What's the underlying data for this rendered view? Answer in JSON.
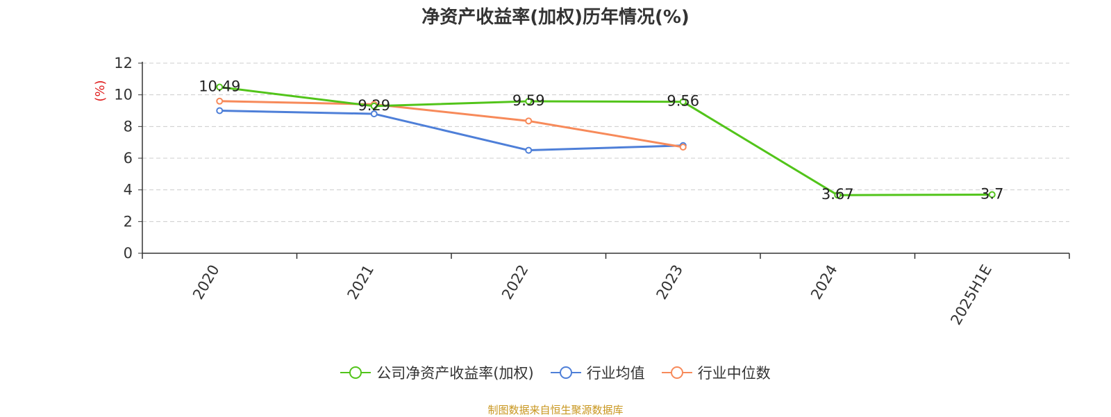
{
  "title": "净资产收益率(加权)历年情况(%)",
  "source": "制图数据来自恒生聚源数据库",
  "chart_data": {
    "type": "line",
    "categories": [
      "2020",
      "2021",
      "2022",
      "2023",
      "2024",
      "2025H1E"
    ],
    "ylabel": "(%)",
    "ylim": [
      0,
      12
    ],
    "yticks": [
      0,
      2,
      4,
      6,
      8,
      10,
      12
    ],
    "grid": true,
    "legend_position": "bottom",
    "series": [
      {
        "name": "公司净资产收益率(加权)",
        "color": "#52c41a",
        "values": [
          10.49,
          9.29,
          9.59,
          9.56,
          3.67,
          3.7
        ],
        "labels": true
      },
      {
        "name": "行业均值",
        "color": "#4e7fd8",
        "values": [
          9.0,
          8.8,
          6.5,
          6.8,
          null,
          null
        ],
        "labels": false
      },
      {
        "name": "行业中位数",
        "color": "#f78a5a",
        "values": [
          9.6,
          9.4,
          8.35,
          6.7,
          null,
          null
        ],
        "labels": false
      }
    ]
  }
}
